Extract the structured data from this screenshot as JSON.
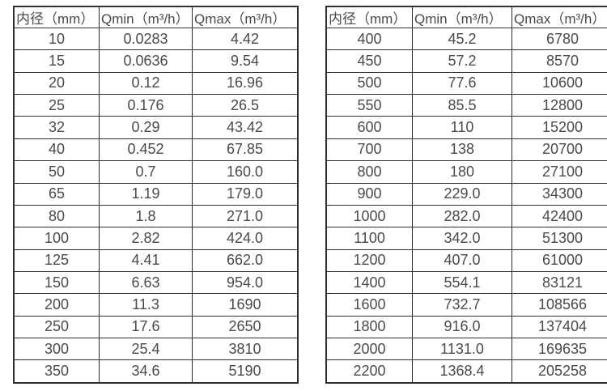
{
  "page": {
    "background_color": "#ffffff",
    "border_color": "#2e2e2e",
    "text_color": "#4a4a4a"
  },
  "tables": [
    {
      "headers": [
        "内径（mm）",
        "Qmin（m³/h）",
        "Qmax（m³/h）"
      ],
      "rows": [
        [
          "10",
          "0.0283",
          "4.42"
        ],
        [
          "15",
          "0.0636",
          "9.54"
        ],
        [
          "20",
          "0.12",
          "16.96"
        ],
        [
          "25",
          "0.176",
          "26.5"
        ],
        [
          "32",
          "0.29",
          "43.42"
        ],
        [
          "40",
          "0.452",
          "67.85"
        ],
        [
          "50",
          "0.7",
          "160.0"
        ],
        [
          "65",
          "1.19",
          "179.0"
        ],
        [
          "80",
          "1.8",
          "271.0"
        ],
        [
          "100",
          "2.82",
          "424.0"
        ],
        [
          "125",
          "4.41",
          "662.0"
        ],
        [
          "150",
          "6.63",
          "954.0"
        ],
        [
          "200",
          "11.3",
          "1690"
        ],
        [
          "250",
          "17.6",
          "2650"
        ],
        [
          "300",
          "25.4",
          "3810"
        ],
        [
          "350",
          "34.6",
          "5190"
        ]
      ]
    },
    {
      "headers": [
        "内径（mm）",
        "Qmin（m³/h）",
        "Qmax（m³/h）"
      ],
      "rows": [
        [
          "400",
          "45.2",
          "6780"
        ],
        [
          "450",
          "57.2",
          "8570"
        ],
        [
          "500",
          "77.6",
          "10600"
        ],
        [
          "550",
          "85.5",
          "12800"
        ],
        [
          "600",
          "110",
          "15200"
        ],
        [
          "700",
          "138",
          "20700"
        ],
        [
          "800",
          "180",
          "27100"
        ],
        [
          "900",
          "229.0",
          "34300"
        ],
        [
          "1000",
          "282.0",
          "42400"
        ],
        [
          "1100",
          "342.0",
          "51300"
        ],
        [
          "1200",
          "407.0",
          "61000"
        ],
        [
          "1400",
          "554.1",
          "83121"
        ],
        [
          "1600",
          "732.7",
          "108566"
        ],
        [
          "1800",
          "916.0",
          "137404"
        ],
        [
          "2000",
          "1131.0",
          "169635"
        ],
        [
          "2200",
          "1368.4",
          "205258"
        ]
      ]
    }
  ]
}
